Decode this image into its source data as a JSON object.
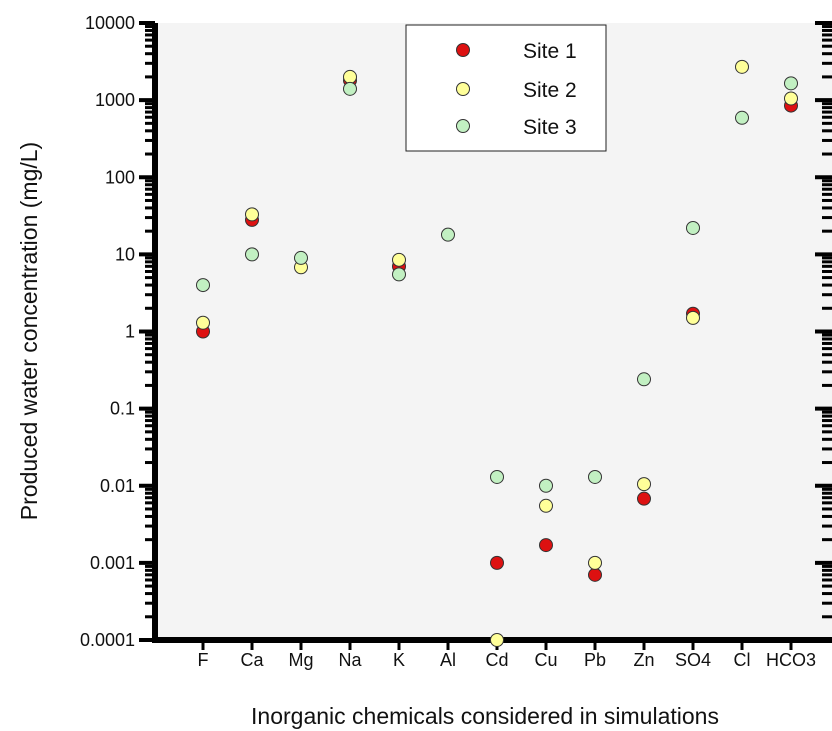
{
  "chart_data": {
    "type": "scatter",
    "xlabel": "Inorganic chemicals considered in simulations",
    "ylabel": "Produced water concentration (mg/L)",
    "y_scale": "log",
    "ylim": [
      0.0001,
      10000
    ],
    "y_ticks": [
      {
        "value": 0.0001,
        "label": "0.0001"
      },
      {
        "value": 0.001,
        "label": "0.001"
      },
      {
        "value": 0.01,
        "label": "0.01"
      },
      {
        "value": 0.1,
        "label": "0.1"
      },
      {
        "value": 1,
        "label": "1"
      },
      {
        "value": 10,
        "label": "10"
      },
      {
        "value": 100,
        "label": "100"
      },
      {
        "value": 1000,
        "label": "1000"
      },
      {
        "value": 10000,
        "label": "10000"
      }
    ],
    "categories": [
      "F",
      "Ca",
      "Mg",
      "Na",
      "K",
      "Al",
      "Cd",
      "Cu",
      "Pb",
      "Zn",
      "SO4",
      "Cl",
      "HCO3"
    ],
    "legend_position": "top-center",
    "grid": false,
    "plot_background": "#f4f4f4",
    "series": [
      {
        "name": "Site 1",
        "color": "#dd1111",
        "values": [
          1.0,
          28,
          null,
          1800,
          7,
          null,
          0.001,
          0.0017,
          0.0007,
          0.0068,
          1.7,
          null,
          850
        ]
      },
      {
        "name": "Site 2",
        "color": "#ffff99",
        "values": [
          1.3,
          33,
          6.8,
          2000,
          8.5,
          null,
          0.0001,
          0.0055,
          0.001,
          0.0105,
          1.5,
          2700,
          1050
        ]
      },
      {
        "name": "Site 3",
        "color": "#c2f0c2",
        "values": [
          4.0,
          10,
          9,
          1400,
          5.5,
          18,
          0.013,
          0.01,
          0.013,
          0.24,
          22,
          590,
          1650
        ]
      }
    ]
  }
}
